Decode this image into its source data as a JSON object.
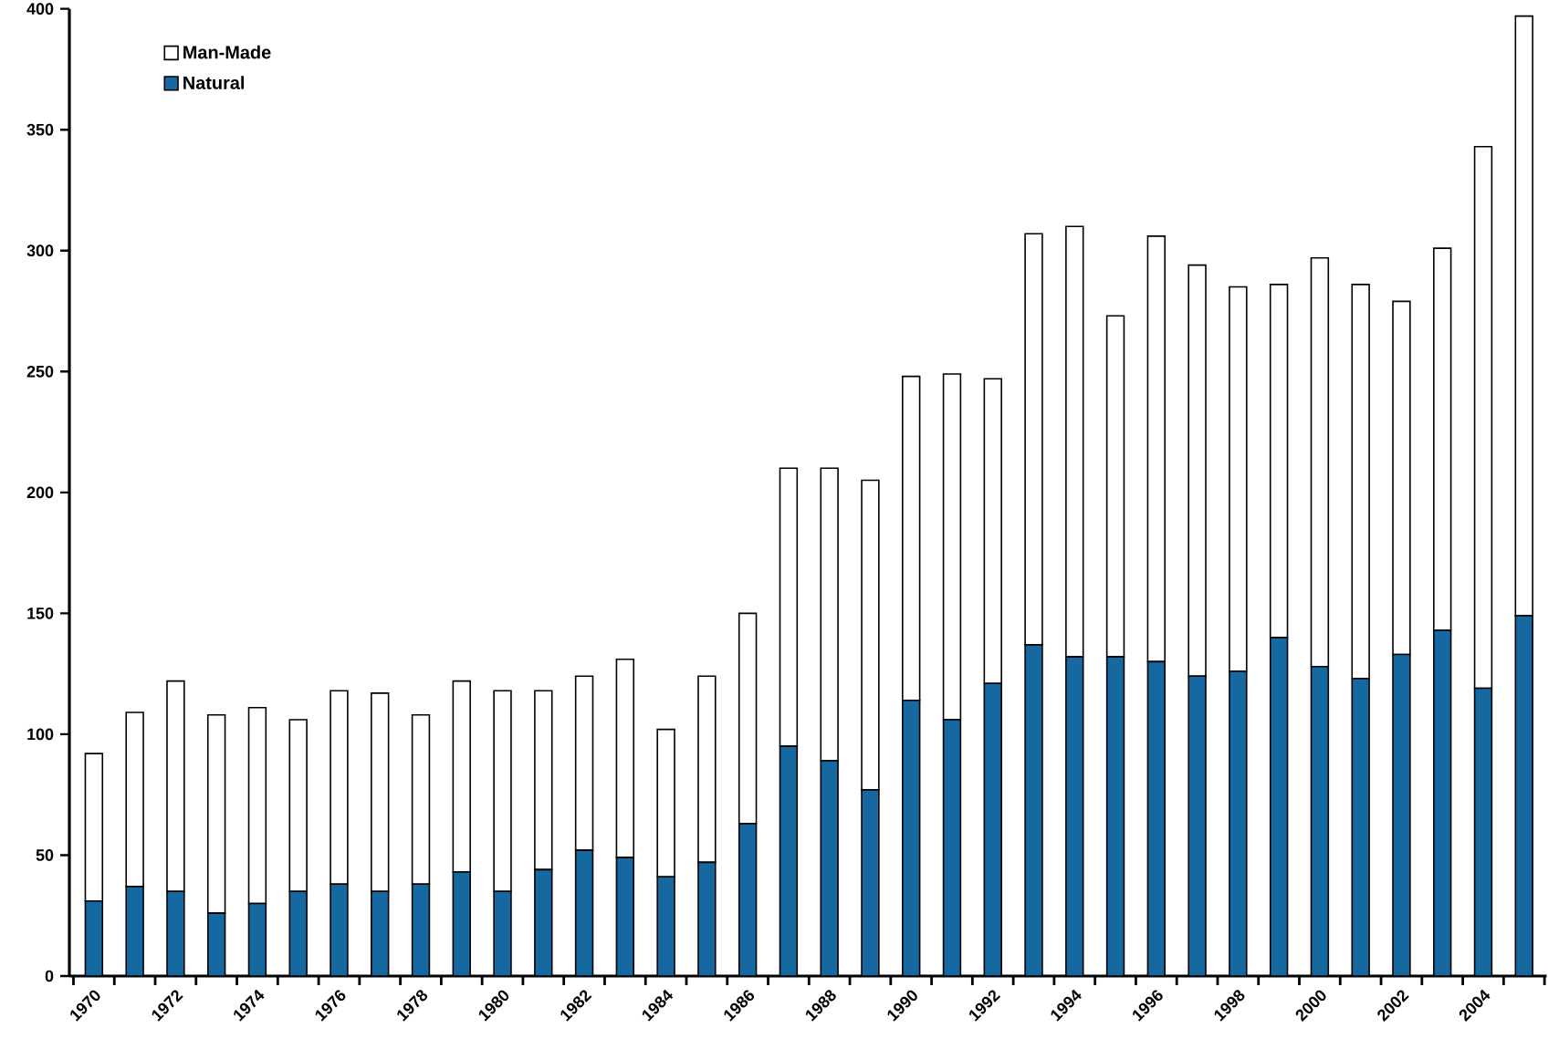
{
  "chart_data": {
    "type": "bar",
    "stacked": true,
    "legend": "top left",
    "categories": [
      "1970",
      null,
      "1972",
      null,
      "1974",
      null,
      "1976",
      null,
      "1978",
      null,
      "1980",
      null,
      "1982",
      null,
      "1984",
      null,
      "1986",
      null,
      "1988",
      null,
      "1990",
      null,
      "1992",
      null,
      "1994",
      null,
      "1996",
      null,
      "1998",
      null,
      "2000",
      null,
      "2002",
      null,
      "2004",
      null
    ],
    "series": [
      {
        "name": "Natural",
        "color": "#1668a0",
        "values": [
          31,
          37,
          35,
          26,
          30,
          35,
          38,
          35,
          38,
          43,
          35,
          44,
          52,
          49,
          41,
          47,
          63,
          95,
          89,
          77,
          114,
          106,
          121,
          137,
          132,
          132,
          130,
          124,
          126,
          140,
          128,
          123,
          133,
          143,
          119,
          149
        ]
      },
      {
        "name": "Man-Made",
        "color": "#ffffff",
        "values": [
          61,
          72,
          87,
          82,
          81,
          71,
          80,
          82,
          70,
          79,
          83,
          74,
          72,
          82,
          61,
          77,
          87,
          115,
          121,
          128,
          134,
          143,
          126,
          170,
          178,
          141,
          176,
          170,
          159,
          146,
          169,
          163,
          146,
          158,
          224,
          248
        ]
      }
    ],
    "ylim": [
      0,
      400
    ],
    "yticks": [
      0,
      50,
      100,
      150,
      200,
      250,
      300,
      350,
      400
    ]
  }
}
